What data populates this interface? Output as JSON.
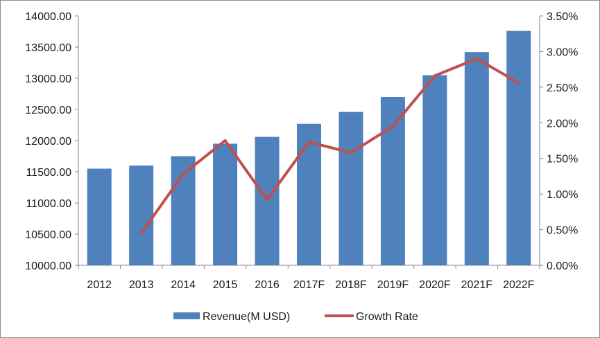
{
  "chart_data": {
    "type": "bar",
    "categories": [
      "2012",
      "2013",
      "2014",
      "2015",
      "2016",
      "2017F",
      "2018F",
      "2019F",
      "2020F",
      "2021F",
      "2022F"
    ],
    "series": [
      {
        "name": "Revenue(M USD)",
        "type": "bar",
        "axis": "left",
        "color": "#4f81bd",
        "values": [
          11550,
          11600,
          11750,
          11950,
          12060,
          12270,
          12460,
          12700,
          13050,
          13420,
          13760
        ]
      },
      {
        "name": "Growth Rate",
        "type": "line",
        "axis": "right",
        "color": "#c0504d",
        "values": [
          null,
          0.45,
          1.28,
          1.75,
          0.92,
          1.73,
          1.58,
          1.95,
          2.66,
          2.9,
          2.56
        ]
      }
    ],
    "y_left": {
      "ylim": [
        10000,
        14000
      ],
      "ticks": [
        "10000.00",
        "10500.00",
        "11000.00",
        "11500.00",
        "12000.00",
        "12500.00",
        "13000.00",
        "13500.00",
        "14000.00"
      ]
    },
    "y_right": {
      "ylim": [
        0,
        3.5
      ],
      "ticks": [
        "0.00%",
        "0.50%",
        "1.00%",
        "1.50%",
        "2.00%",
        "2.50%",
        "3.00%",
        "3.50%"
      ]
    },
    "grid": false,
    "legend": "bottom"
  }
}
